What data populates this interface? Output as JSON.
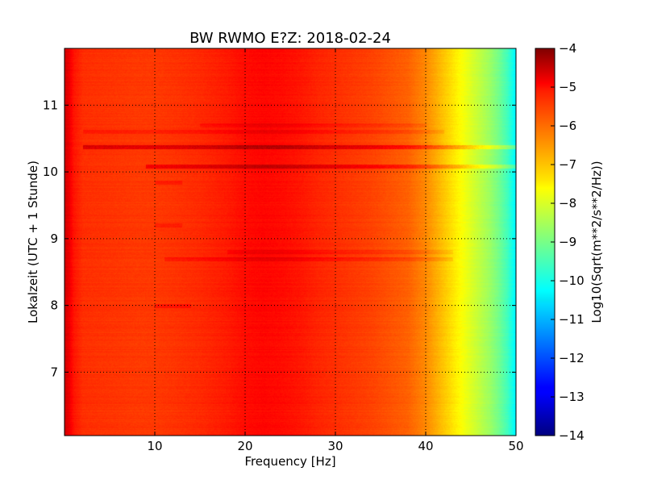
{
  "chart_data": {
    "type": "heatmap",
    "title": "BW RWMO E?Z: 2018-02-24",
    "xlabel": "Frequency [Hz]",
    "ylabel": "Lokalzeit (UTC + 1 Stunde)",
    "colorbar_label": "Log10(Sqrt(m**2/s**2/Hz))",
    "xlim": [
      0,
      50
    ],
    "ylim": [
      11.85,
      6.05
    ],
    "x_ticks": [
      10,
      20,
      30,
      40,
      50
    ],
    "y_ticks": [
      7,
      8,
      9,
      10,
      11
    ],
    "colorbar_range": [
      -14,
      -4
    ],
    "colorbar_ticks": [
      -4,
      -5,
      -6,
      -7,
      -8,
      -9,
      -10,
      -11,
      -12,
      -13,
      -14
    ],
    "colormap": "jet",
    "grid": true,
    "grid_style": "dotted",
    "frequency_profile": {
      "frequency_hz": [
        0,
        0.5,
        1,
        2,
        5,
        8,
        10,
        12,
        15,
        18,
        20,
        22,
        24,
        26,
        28,
        30,
        32,
        34,
        36,
        38,
        39,
        40,
        41,
        42,
        43,
        44,
        45,
        46,
        47,
        48,
        49,
        49.5,
        50
      ],
      "log10_amplitude": [
        -4.8,
        -5.1,
        -5.45,
        -5.7,
        -5.75,
        -5.8,
        -5.8,
        -5.75,
        -5.65,
        -5.5,
        -5.35,
        -5.3,
        -5.35,
        -5.45,
        -5.6,
        -5.7,
        -5.8,
        -5.9,
        -6.05,
        -6.2,
        -6.4,
        -6.6,
        -6.9,
        -7.2,
        -7.5,
        -7.8,
        -8.1,
        -8.4,
        -8.7,
        -9.1,
        -9.6,
        -10.0,
        -10.4
      ]
    },
    "bands": [
      {
        "time_h": 8.0,
        "freq_range": [
          10,
          14
        ],
        "log10_offset": 0.35
      },
      {
        "time_h": 8.7,
        "freq_range": [
          11,
          43
        ],
        "log10_offset": 0.35
      },
      {
        "time_h": 8.8,
        "freq_range": [
          18,
          43
        ],
        "log10_offset": 0.25
      },
      {
        "time_h": 9.2,
        "freq_range": [
          10,
          13
        ],
        "log10_offset": 0.3
      },
      {
        "time_h": 9.85,
        "freq_range": [
          10,
          13
        ],
        "log10_offset": 0.3
      },
      {
        "time_h": 10.08,
        "freq_range": [
          9,
          50
        ],
        "log10_offset": 0.75
      },
      {
        "time_h": 10.38,
        "freq_range": [
          2,
          50
        ],
        "log10_offset": 0.95
      },
      {
        "time_h": 10.6,
        "freq_range": [
          2,
          42
        ],
        "log10_offset": 0.3
      },
      {
        "time_h": 10.7,
        "freq_range": [
          15,
          40
        ],
        "log10_offset": 0.25
      }
    ]
  }
}
